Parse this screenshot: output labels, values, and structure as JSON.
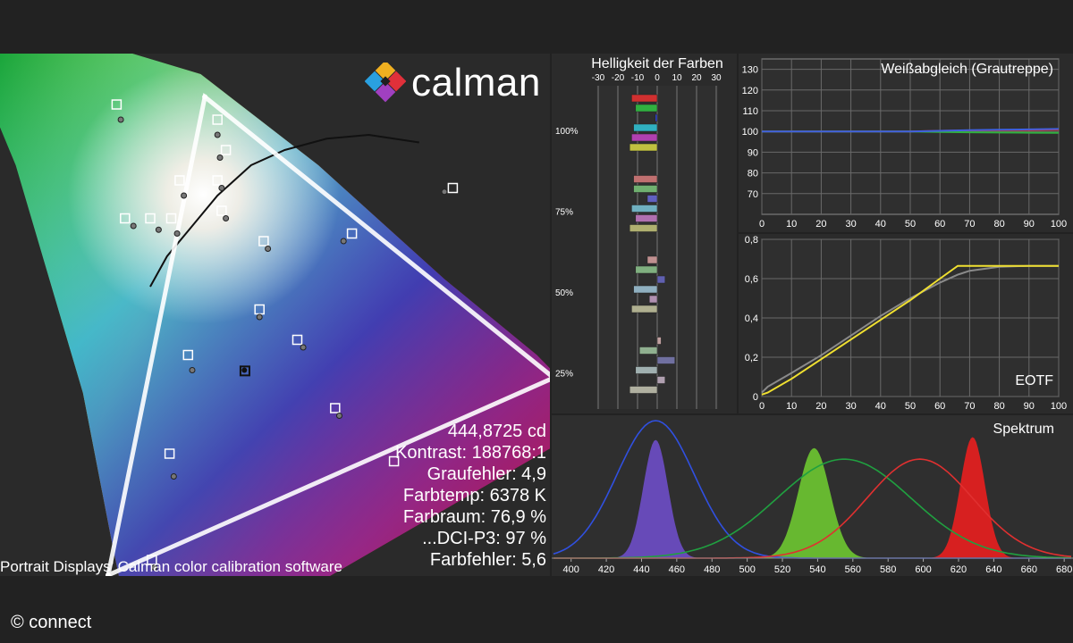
{
  "logo": {
    "text": "calman"
  },
  "caption": "Portrait Displays’ Calman color calibration software",
  "credit": "© connect",
  "stats": [
    "444,8725 cd",
    "Kontrast: 188768:1",
    "Graufehler: 4,9",
    "Farbtemp: 6378 K",
    "Farbraum: 76,9 %",
    "...DCI-P3: 97 %",
    "Farbfehler: 5,6"
  ],
  "chart_data": [
    {
      "type": "scatter",
      "name": "cie",
      "gamut_target": [
        [
          0.15,
          0.06
        ],
        [
          0.68,
          0.32
        ],
        [
          0.265,
          0.69
        ]
      ],
      "gamut_measured": [
        [
          0.155,
          0.07
        ],
        [
          0.67,
          0.325
        ],
        [
          0.27,
          0.695
        ]
      ],
      "targets": [
        [
          0.28,
          0.66
        ],
        [
          0.29,
          0.62
        ],
        [
          0.28,
          0.58
        ],
        [
          0.235,
          0.58
        ],
        [
          0.16,
          0.68
        ],
        [
          0.17,
          0.53
        ],
        [
          0.2,
          0.53
        ],
        [
          0.225,
          0.53
        ],
        [
          0.285,
          0.54
        ],
        [
          0.335,
          0.5
        ],
        [
          0.44,
          0.51
        ],
        [
          0.56,
          0.57
        ],
        [
          0.33,
          0.41
        ],
        [
          0.375,
          0.37
        ],
        [
          0.42,
          0.28
        ],
        [
          0.245,
          0.35
        ],
        [
          0.223,
          0.22
        ],
        [
          0.202,
          0.08
        ],
        [
          0.49,
          0.21
        ]
      ],
      "measured": [
        [
          0.28,
          0.64
        ],
        [
          0.283,
          0.61
        ],
        [
          0.285,
          0.57
        ],
        [
          0.24,
          0.56
        ],
        [
          0.165,
          0.66
        ],
        [
          0.18,
          0.52
        ],
        [
          0.21,
          0.515
        ],
        [
          0.232,
          0.51
        ],
        [
          0.29,
          0.53
        ],
        [
          0.34,
          0.49
        ],
        [
          0.43,
          0.5
        ],
        [
          0.55,
          0.565
        ],
        [
          0.33,
          0.4
        ],
        [
          0.382,
          0.36
        ],
        [
          0.425,
          0.27
        ],
        [
          0.25,
          0.33
        ],
        [
          0.228,
          0.19
        ],
        [
          0.205,
          0.07
        ]
      ],
      "white_target": [
        0.3127,
        0.329
      ],
      "white_measured": [
        0.312,
        0.33
      ]
    },
    {
      "type": "bar",
      "name": "helligkeit",
      "title": "Helligkeit der Farben",
      "x_ticks": [
        "-30",
        "-20",
        "-10",
        "0",
        "10",
        "20",
        "30"
      ],
      "y_labels": [
        "100%",
        "75%",
        "50%",
        "25%"
      ],
      "xlim": [
        -30,
        30
      ],
      "groups": [
        {
          "label": "100%",
          "bars": [
            {
              "color": "#d03030",
              "value": -13
            },
            {
              "color": "#30b040",
              "value": -11
            },
            {
              "color": "#3040c0",
              "value": -1
            },
            {
              "color": "#30b0c0",
              "value": -12
            },
            {
              "color": "#b040b0",
              "value": -13
            },
            {
              "color": "#c0c040",
              "value": -14
            }
          ]
        },
        {
          "label": "75%",
          "bars": [
            {
              "color": "#c07070",
              "value": -12
            },
            {
              "color": "#70b070",
              "value": -12
            },
            {
              "color": "#6060c0",
              "value": -5
            },
            {
              "color": "#70b0c0",
              "value": -13
            },
            {
              "color": "#b070b0",
              "value": -11
            },
            {
              "color": "#b0b070",
              "value": -14
            }
          ]
        },
        {
          "label": "50%",
          "bars": [
            {
              "color": "#c09090",
              "value": -5
            },
            {
              "color": "#80b080",
              "value": -11
            },
            {
              "color": "#6060b0",
              "value": 4
            },
            {
              "color": "#90b0c0",
              "value": -12
            },
            {
              "color": "#b090b0",
              "value": -4
            },
            {
              "color": "#b0b090",
              "value": -13
            }
          ]
        },
        {
          "label": "25%",
          "bars": [
            {
              "color": "#c0a0a0",
              "value": 2
            },
            {
              "color": "#90b090",
              "value": -9
            },
            {
              "color": "#7070a0",
              "value": 9
            },
            {
              "color": "#a0b0b0",
              "value": -11
            },
            {
              "color": "#b0a0b0",
              "value": 4
            },
            {
              "color": "#b0b0a0",
              "value": -14
            }
          ]
        }
      ]
    },
    {
      "type": "line",
      "name": "weissabgleich",
      "title": "Weißabgleich (Grautreppe)",
      "xlim": [
        0,
        100
      ],
      "ylim": [
        60,
        135
      ],
      "x_ticks": [
        "0",
        "10",
        "20",
        "30",
        "40",
        "50",
        "60",
        "70",
        "80",
        "90",
        "100"
      ],
      "y_ticks": [
        "70",
        "80",
        "90",
        "100",
        "110",
        "120",
        "130"
      ],
      "x": [
        0,
        10,
        20,
        30,
        40,
        50,
        60,
        70,
        80,
        90,
        100
      ],
      "series": [
        {
          "color": "#e03030",
          "values": [
            100,
            100,
            100,
            100,
            100,
            100,
            100.3,
            100.5,
            100.6,
            100.7,
            100.8
          ]
        },
        {
          "color": "#30b040",
          "values": [
            100,
            100,
            100,
            100,
            100,
            100,
            99.8,
            99.6,
            99.5,
            99.4,
            99.3
          ]
        },
        {
          "color": "#4060e0",
          "values": [
            100,
            100,
            100,
            100,
            100,
            100,
            100.3,
            100.6,
            100.8,
            101,
            101.2
          ]
        }
      ]
    },
    {
      "type": "line",
      "name": "eotf",
      "title": "EOTF",
      "xlim": [
        0,
        100
      ],
      "ylim": [
        0,
        0.8
      ],
      "x_ticks": [
        "0",
        "10",
        "20",
        "30",
        "40",
        "50",
        "60",
        "70",
        "80",
        "90",
        "100"
      ],
      "y_ticks": [
        "0",
        "0,2",
        "0,4",
        "0,6",
        "0,8"
      ],
      "x": [
        0,
        2,
        10,
        20,
        30,
        40,
        50,
        60,
        66,
        67,
        70,
        80,
        90,
        100
      ],
      "series": [
        {
          "color": "#8a8a8a",
          "values": [
            0.02,
            0.05,
            0.12,
            0.21,
            0.31,
            0.41,
            0.5,
            0.58,
            0.62,
            0.625,
            0.64,
            0.66,
            0.665,
            0.665
          ]
        },
        {
          "color": "#f0e030",
          "values": [
            0.01,
            0.02,
            0.09,
            0.19,
            0.29,
            0.39,
            0.49,
            0.6,
            0.665,
            0.665,
            0.665,
            0.665,
            0.665,
            0.665
          ]
        }
      ]
    },
    {
      "type": "area",
      "name": "spektrum",
      "title": "Spektrum",
      "xlim": [
        390,
        685
      ],
      "x_ticks": [
        "400",
        "420",
        "440",
        "460",
        "480",
        "500",
        "520",
        "540",
        "560",
        "580",
        "600",
        "620",
        "640",
        "660",
        "680"
      ],
      "peaks": [
        {
          "center": 448,
          "width": 7,
          "height": 0.86,
          "color": "#6a4cc0"
        },
        {
          "center": 538,
          "width": 9,
          "height": 0.8,
          "color": "#6ac030"
        },
        {
          "center": 628,
          "width": 7,
          "height": 0.88,
          "color": "#e02020"
        }
      ],
      "curves": [
        {
          "color": "#3050e0",
          "center": 448,
          "width": 22,
          "height": 1.0
        },
        {
          "color": "#20a040",
          "center": 555,
          "width": 38,
          "height": 0.72
        },
        {
          "color": "#e03030",
          "center": 598,
          "width": 30,
          "height": 0.72
        }
      ]
    }
  ]
}
